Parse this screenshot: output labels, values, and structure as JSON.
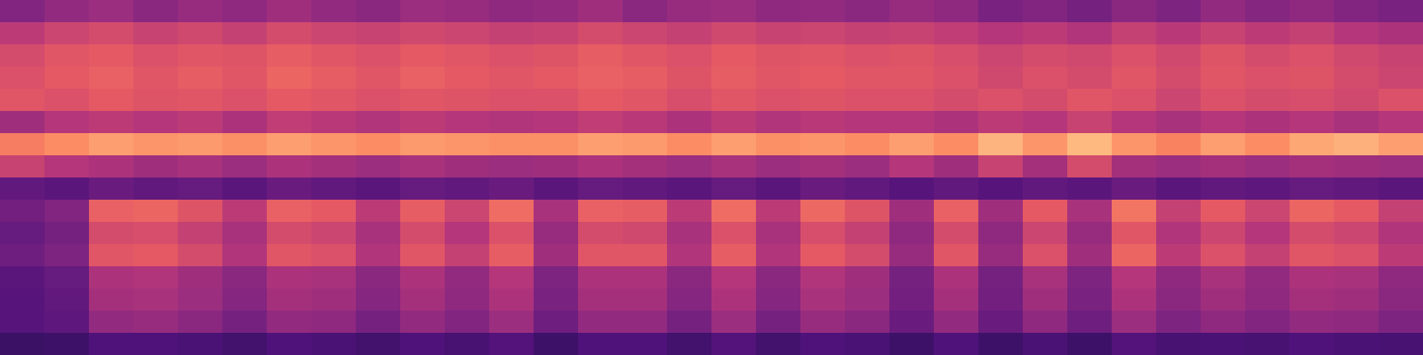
{
  "chart_data": {
    "type": "heatmap",
    "tick_labels": false,
    "xlim": [
      0,
      32
    ],
    "ylim": [
      0,
      16
    ],
    "zlim": [
      0,
      1
    ],
    "cells": [
      [
        0.38,
        0.42,
        0.44,
        0.4,
        0.43,
        0.41,
        0.45,
        0.42,
        0.4,
        0.44,
        0.43,
        0.41,
        0.42,
        0.45,
        0.4,
        0.43,
        0.44,
        0.41,
        0.42,
        0.4,
        0.43,
        0.41,
        0.36,
        0.38,
        0.35,
        0.4,
        0.37,
        0.42,
        0.39,
        0.41,
        0.38,
        0.36
      ],
      [
        0.52,
        0.56,
        0.58,
        0.55,
        0.57,
        0.54,
        0.58,
        0.56,
        0.55,
        0.57,
        0.56,
        0.54,
        0.55,
        0.58,
        0.56,
        0.54,
        0.57,
        0.55,
        0.56,
        0.54,
        0.55,
        0.53,
        0.5,
        0.52,
        0.49,
        0.54,
        0.51,
        0.55,
        0.52,
        0.54,
        0.5,
        0.48
      ],
      [
        0.58,
        0.62,
        0.63,
        0.6,
        0.62,
        0.61,
        0.64,
        0.62,
        0.6,
        0.63,
        0.62,
        0.6,
        0.61,
        0.64,
        0.62,
        0.6,
        0.63,
        0.61,
        0.62,
        0.6,
        0.61,
        0.59,
        0.56,
        0.58,
        0.57,
        0.6,
        0.57,
        0.61,
        0.58,
        0.6,
        0.57,
        0.55
      ],
      [
        0.6,
        0.63,
        0.65,
        0.62,
        0.64,
        0.62,
        0.66,
        0.64,
        0.62,
        0.65,
        0.63,
        0.62,
        0.63,
        0.65,
        0.64,
        0.61,
        0.64,
        0.62,
        0.63,
        0.62,
        0.62,
        0.6,
        0.57,
        0.6,
        0.58,
        0.62,
        0.58,
        0.62,
        0.6,
        0.61,
        0.58,
        0.56
      ],
      [
        0.62,
        0.6,
        0.63,
        0.61,
        0.62,
        0.6,
        0.63,
        0.62,
        0.6,
        0.62,
        0.61,
        0.6,
        0.6,
        0.63,
        0.62,
        0.59,
        0.62,
        0.6,
        0.61,
        0.6,
        0.6,
        0.58,
        0.6,
        0.58,
        0.62,
        0.6,
        0.56,
        0.6,
        0.58,
        0.59,
        0.57,
        0.6
      ],
      [
        0.45,
        0.5,
        0.52,
        0.5,
        0.52,
        0.48,
        0.53,
        0.51,
        0.49,
        0.52,
        0.5,
        0.49,
        0.5,
        0.53,
        0.51,
        0.48,
        0.52,
        0.49,
        0.51,
        0.5,
        0.5,
        0.48,
        0.52,
        0.5,
        0.55,
        0.5,
        0.47,
        0.5,
        0.48,
        0.5,
        0.47,
        0.5
      ],
      [
        0.72,
        0.76,
        0.8,
        0.78,
        0.79,
        0.77,
        0.8,
        0.78,
        0.76,
        0.79,
        0.78,
        0.77,
        0.77,
        0.8,
        0.79,
        0.76,
        0.8,
        0.77,
        0.78,
        0.76,
        0.8,
        0.76,
        0.85,
        0.78,
        0.86,
        0.78,
        0.74,
        0.8,
        0.76,
        0.82,
        0.84,
        0.8
      ],
      [
        0.55,
        0.5,
        0.48,
        0.45,
        0.47,
        0.44,
        0.48,
        0.46,
        0.44,
        0.47,
        0.45,
        0.44,
        0.45,
        0.48,
        0.46,
        0.44,
        0.47,
        0.44,
        0.46,
        0.44,
        0.5,
        0.45,
        0.55,
        0.46,
        0.58,
        0.46,
        0.44,
        0.46,
        0.44,
        0.46,
        0.45,
        0.44
      ],
      [
        0.3,
        0.28,
        0.32,
        0.3,
        0.31,
        0.28,
        0.32,
        0.3,
        0.28,
        0.31,
        0.3,
        0.32,
        0.28,
        0.31,
        0.3,
        0.28,
        0.31,
        0.28,
        0.32,
        0.3,
        0.27,
        0.3,
        0.27,
        0.3,
        0.28,
        0.32,
        0.28,
        0.3,
        0.29,
        0.31,
        0.3,
        0.28
      ],
      [
        0.34,
        0.38,
        0.65,
        0.66,
        0.61,
        0.52,
        0.65,
        0.63,
        0.52,
        0.64,
        0.56,
        0.68,
        0.47,
        0.65,
        0.64,
        0.52,
        0.68,
        0.52,
        0.67,
        0.61,
        0.45,
        0.65,
        0.45,
        0.63,
        0.47,
        0.7,
        0.54,
        0.63,
        0.56,
        0.66,
        0.63,
        0.54
      ],
      [
        0.31,
        0.35,
        0.58,
        0.59,
        0.54,
        0.47,
        0.58,
        0.56,
        0.47,
        0.58,
        0.5,
        0.6,
        0.43,
        0.58,
        0.57,
        0.47,
        0.6,
        0.47,
        0.59,
        0.54,
        0.41,
        0.58,
        0.41,
        0.56,
        0.43,
        0.62,
        0.49,
        0.56,
        0.5,
        0.58,
        0.56,
        0.49
      ],
      [
        0.33,
        0.37,
        0.62,
        0.63,
        0.58,
        0.49,
        0.62,
        0.6,
        0.49,
        0.62,
        0.54,
        0.64,
        0.45,
        0.62,
        0.62,
        0.49,
        0.64,
        0.49,
        0.63,
        0.58,
        0.43,
        0.62,
        0.43,
        0.6,
        0.45,
        0.66,
        0.52,
        0.6,
        0.54,
        0.62,
        0.6,
        0.52
      ],
      [
        0.28,
        0.31,
        0.48,
        0.49,
        0.45,
        0.4,
        0.48,
        0.47,
        0.4,
        0.48,
        0.42,
        0.5,
        0.37,
        0.48,
        0.48,
        0.4,
        0.5,
        0.4,
        0.49,
        0.45,
        0.35,
        0.48,
        0.35,
        0.47,
        0.37,
        0.5,
        0.41,
        0.47,
        0.42,
        0.48,
        0.47,
        0.41
      ],
      [
        0.27,
        0.3,
        0.46,
        0.47,
        0.44,
        0.39,
        0.46,
        0.45,
        0.39,
        0.46,
        0.41,
        0.48,
        0.36,
        0.46,
        0.46,
        0.39,
        0.48,
        0.39,
        0.47,
        0.44,
        0.34,
        0.46,
        0.34,
        0.45,
        0.36,
        0.48,
        0.4,
        0.45,
        0.41,
        0.46,
        0.45,
        0.4
      ],
      [
        0.27,
        0.29,
        0.42,
        0.43,
        0.4,
        0.35,
        0.42,
        0.41,
        0.35,
        0.42,
        0.38,
        0.44,
        0.33,
        0.42,
        0.42,
        0.35,
        0.44,
        0.35,
        0.43,
        0.4,
        0.32,
        0.42,
        0.32,
        0.41,
        0.33,
        0.44,
        0.37,
        0.41,
        0.38,
        0.42,
        0.41,
        0.37
      ],
      [
        0.2,
        0.21,
        0.25,
        0.25,
        0.24,
        0.22,
        0.25,
        0.24,
        0.22,
        0.25,
        0.23,
        0.26,
        0.21,
        0.25,
        0.25,
        0.22,
        0.26,
        0.22,
        0.25,
        0.24,
        0.21,
        0.25,
        0.21,
        0.24,
        0.21,
        0.26,
        0.23,
        0.24,
        0.23,
        0.25,
        0.24,
        0.23
      ]
    ]
  }
}
